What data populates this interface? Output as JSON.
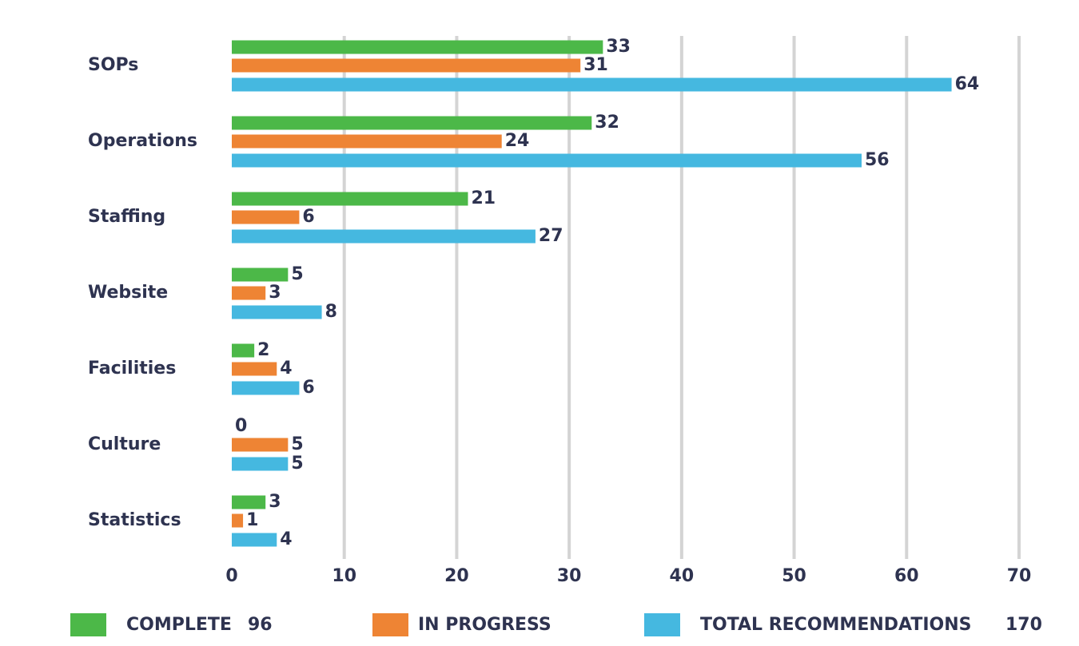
{
  "chart_data": {
    "type": "bar",
    "orientation": "horizontal",
    "categories": [
      "SOPs",
      "Operations",
      "Staffing",
      "Website",
      "Facilities",
      "Culture",
      "Statistics"
    ],
    "series": [
      {
        "name": "COMPLETE",
        "total": 96,
        "color": "#4cb848",
        "values": [
          33,
          32,
          21,
          5,
          2,
          0,
          3
        ]
      },
      {
        "name": "IN PROGRESS",
        "color": "#ee8434",
        "values": [
          31,
          24,
          6,
          3,
          4,
          5,
          1
        ]
      },
      {
        "name": "TOTAL RECOMMENDATIONS",
        "total": 170,
        "color": "#45b8e0",
        "values": [
          64,
          56,
          27,
          8,
          6,
          5,
          4
        ]
      }
    ],
    "xlim": [
      0,
      70
    ],
    "xticks": [
      0,
      10,
      20,
      30,
      40,
      50,
      60,
      70
    ],
    "grid": true,
    "legend": "bottom"
  }
}
